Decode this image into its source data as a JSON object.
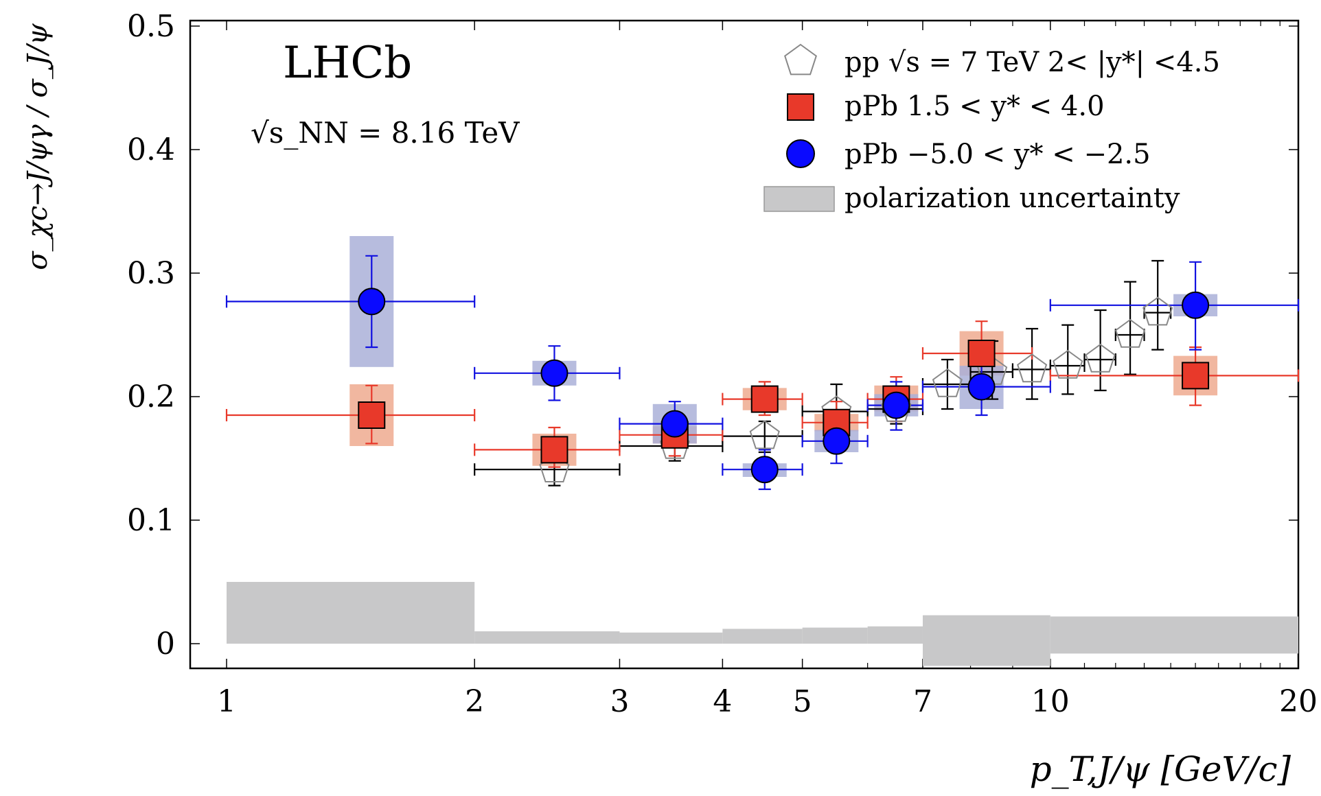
{
  "chart_data": {
    "type": "scatter",
    "title": "LHCb",
    "subtitle": "√s_NN = 8.16 TeV",
    "xlabel": "p_T,J/ψ [GeV/c]",
    "ylabel": "σ_χc→J/ψγ / σ_J/ψ",
    "xscale": "log",
    "xlim": [
      0.85,
      20
    ],
    "ylim": [
      -0.02,
      0.5
    ],
    "xticks": [
      1,
      2,
      3,
      4,
      5,
      7,
      10,
      20
    ],
    "xtick_labels": [
      "1",
      "2",
      "3",
      "4",
      "5",
      "7",
      "10",
      "20"
    ],
    "yticks": [
      0,
      0.1,
      0.2,
      0.3,
      0.4,
      0.5
    ],
    "ytick_labels": [
      "0",
      "0.1",
      "0.2",
      "0.3",
      "0.4",
      "0.5"
    ],
    "legend_position": "top-right",
    "series": [
      {
        "name": "pp",
        "legend_label": "pp √s = 7 TeV 2< |y*| <4.5",
        "marker": "pentagon-open",
        "color": "#888888",
        "errcolor": "#000000",
        "points": [
          {
            "x": 2.5,
            "xlo": 2,
            "xhi": 3,
            "y": 0.141,
            "ylo": 0.128,
            "yhi": 0.152
          },
          {
            "x": 3.5,
            "xlo": 3,
            "xhi": 4,
            "y": 0.16,
            "ylo": 0.148,
            "yhi": 0.172
          },
          {
            "x": 4.5,
            "xlo": 4,
            "xhi": 5,
            "y": 0.168,
            "ylo": 0.155,
            "yhi": 0.18
          },
          {
            "x": 5.5,
            "xlo": 5,
            "xhi": 6,
            "y": 0.188,
            "ylo": 0.165,
            "yhi": 0.21
          },
          {
            "x": 6.5,
            "xlo": 6,
            "xhi": 7,
            "y": 0.19,
            "ylo": 0.178,
            "yhi": 0.203
          },
          {
            "x": 7.5,
            "xlo": 7,
            "xhi": 8,
            "y": 0.21,
            "ylo": 0.19,
            "yhi": 0.23
          },
          {
            "x": 8.5,
            "xlo": 8,
            "xhi": 9,
            "y": 0.22,
            "ylo": 0.198,
            "yhi": 0.245
          },
          {
            "x": 9.5,
            "xlo": 9,
            "xhi": 10,
            "y": 0.222,
            "ylo": 0.198,
            "yhi": 0.255
          },
          {
            "x": 10.5,
            "xlo": 10,
            "xhi": 11,
            "y": 0.225,
            "ylo": 0.202,
            "yhi": 0.258
          },
          {
            "x": 11.5,
            "xlo": 11,
            "xhi": 12,
            "y": 0.23,
            "ylo": 0.205,
            "yhi": 0.27
          },
          {
            "x": 12.5,
            "xlo": 12,
            "xhi": 13,
            "y": 0.25,
            "ylo": 0.218,
            "yhi": 0.293
          },
          {
            "x": 13.5,
            "xlo": 13,
            "xhi": 14,
            "y": 0.268,
            "ylo": 0.238,
            "yhi": 0.31
          }
        ]
      },
      {
        "name": "pPb forward",
        "legend_label": "pPb 1.5 < y* < 4.0",
        "marker": "square",
        "color": "#e8392a",
        "errcolor": "#e8392a",
        "boxcolor": "#eeaa8f",
        "points": [
          {
            "x": 1.5,
            "xlo": 1,
            "xhi": 2,
            "y": 0.185,
            "ylo": 0.162,
            "yhi": 0.209,
            "slo": 0.16,
            "shi": 0.21
          },
          {
            "x": 2.5,
            "xlo": 2,
            "xhi": 3,
            "y": 0.157,
            "ylo": 0.143,
            "yhi": 0.175,
            "slo": 0.144,
            "shi": 0.17
          },
          {
            "x": 3.5,
            "xlo": 3,
            "xhi": 4,
            "y": 0.169,
            "ylo": 0.152,
            "yhi": 0.186,
            "slo": 0.162,
            "shi": 0.176
          },
          {
            "x": 4.5,
            "xlo": 4,
            "xhi": 5,
            "y": 0.198,
            "ylo": 0.185,
            "yhi": 0.212,
            "slo": 0.189,
            "shi": 0.207
          },
          {
            "x": 5.5,
            "xlo": 5,
            "xhi": 6,
            "y": 0.179,
            "ylo": 0.162,
            "yhi": 0.196,
            "slo": 0.172,
            "shi": 0.186
          },
          {
            "x": 6.5,
            "xlo": 6,
            "xhi": 7,
            "y": 0.198,
            "ylo": 0.18,
            "yhi": 0.216,
            "slo": 0.188,
            "shi": 0.209
          },
          {
            "x": 8.25,
            "xlo": 7,
            "xhi": 9.5,
            "y": 0.235,
            "ylo": 0.208,
            "yhi": 0.261,
            "slo": 0.217,
            "shi": 0.253
          },
          {
            "x": 15,
            "xlo": 10,
            "xhi": 20,
            "y": 0.217,
            "ylo": 0.193,
            "yhi": 0.24,
            "slo": 0.201,
            "shi": 0.233
          }
        ]
      },
      {
        "name": "pPb backward",
        "legend_label": "pPb −5.0 < y* < −2.5",
        "marker": "circle",
        "color": "#0a0aff",
        "errcolor": "#1010e0",
        "boxcolor": "#aab0d8",
        "points": [
          {
            "x": 1.5,
            "xlo": 1,
            "xhi": 2,
            "y": 0.277,
            "ylo": 0.24,
            "yhi": 0.314,
            "slo": 0.224,
            "shi": 0.33
          },
          {
            "x": 2.5,
            "xlo": 2,
            "xhi": 3,
            "y": 0.219,
            "ylo": 0.197,
            "yhi": 0.241,
            "slo": 0.209,
            "shi": 0.229
          },
          {
            "x": 3.5,
            "xlo": 3,
            "xhi": 4,
            "y": 0.178,
            "ylo": 0.16,
            "yhi": 0.196,
            "slo": 0.162,
            "shi": 0.194
          },
          {
            "x": 4.5,
            "xlo": 4,
            "xhi": 5,
            "y": 0.141,
            "ylo": 0.125,
            "yhi": 0.157,
            "slo": 0.135,
            "shi": 0.146
          },
          {
            "x": 5.5,
            "xlo": 5,
            "xhi": 6,
            "y": 0.164,
            "ylo": 0.146,
            "yhi": 0.182,
            "slo": 0.155,
            "shi": 0.173
          },
          {
            "x": 6.5,
            "xlo": 6,
            "xhi": 7,
            "y": 0.193,
            "ylo": 0.173,
            "yhi": 0.212,
            "slo": 0.184,
            "shi": 0.202
          },
          {
            "x": 8.25,
            "xlo": 7,
            "xhi": 10,
            "y": 0.208,
            "ylo": 0.185,
            "yhi": 0.232,
            "slo": 0.19,
            "shi": 0.225
          },
          {
            "x": 15,
            "xlo": 10,
            "xhi": 20,
            "y": 0.274,
            "ylo": 0.238,
            "yhi": 0.309,
            "slo": 0.265,
            "shi": 0.283
          }
        ]
      }
    ],
    "polarization_band": {
      "legend_label": "polarization uncertainty",
      "color": "#c8c8c9",
      "bins": [
        {
          "xlo": 1,
          "xhi": 2,
          "lo": 0,
          "hi": 0.05
        },
        {
          "xlo": 2,
          "xhi": 3,
          "lo": 0,
          "hi": 0.01
        },
        {
          "xlo": 3,
          "xhi": 4,
          "lo": 0,
          "hi": 0.009
        },
        {
          "xlo": 4,
          "xhi": 5,
          "lo": 0,
          "hi": 0.012
        },
        {
          "xlo": 5,
          "xhi": 6,
          "lo": 0,
          "hi": 0.013
        },
        {
          "xlo": 6,
          "xhi": 7,
          "lo": 0,
          "hi": 0.014
        },
        {
          "xlo": 7,
          "xhi": 10,
          "lo": -0.018,
          "hi": 0.023
        },
        {
          "xlo": 10,
          "xhi": 20,
          "lo": -0.008,
          "hi": 0.022
        }
      ]
    }
  }
}
